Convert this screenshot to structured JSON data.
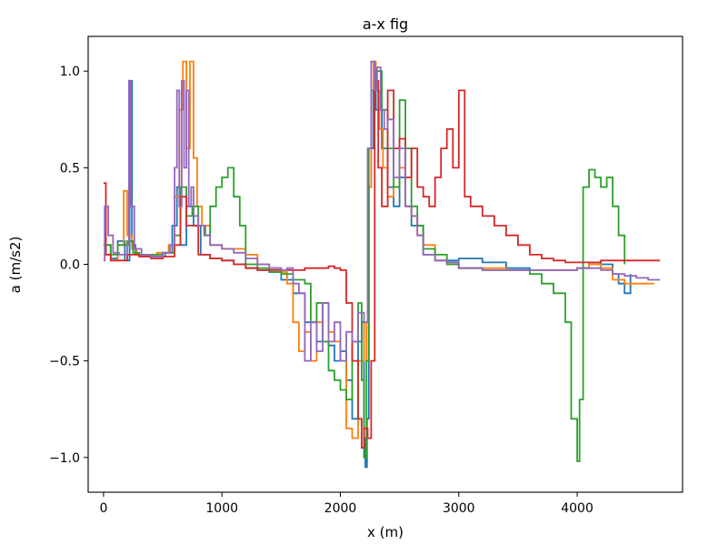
{
  "chart_data": {
    "type": "line",
    "title": "a-x fig",
    "xlabel": "x (m)",
    "ylabel": "a (m/s2)",
    "xlim": [
      -130,
      4890
    ],
    "ylim": [
      -1.18,
      1.18
    ],
    "xticks": [
      0,
      1000,
      2000,
      3000,
      4000
    ],
    "xtick_labels": [
      "0",
      "1000",
      "2000",
      "3000",
      "4000"
    ],
    "yticks": [
      -1.0,
      -0.5,
      0.0,
      0.5,
      1.0
    ],
    "ytick_labels": [
      "−1.0",
      "−0.5",
      "0.0",
      "0.5",
      "1.0"
    ],
    "grid": false,
    "step": true,
    "series": [
      {
        "color": "#1f77b4",
        "x": [
          0,
          60,
          120,
          180,
          220,
          240,
          270,
          320,
          420,
          520,
          580,
          620,
          650,
          700,
          760,
          820,
          900,
          1000,
          1100,
          1200,
          1300,
          1400,
          1500,
          1600,
          1700,
          1800,
          1900,
          1950,
          2000,
          2050,
          2100,
          2150,
          2180,
          2200,
          2210,
          2225,
          2240,
          2260,
          2280,
          2300,
          2350,
          2400,
          2450,
          2500,
          2550,
          2600,
          2700,
          2800,
          2900,
          3000,
          3200,
          3400,
          3600,
          3800,
          4000,
          4100,
          4200,
          4300,
          4350,
          4400,
          4450
        ],
        "y": [
          0.1,
          0.03,
          0.12,
          0.02,
          0.95,
          0.1,
          0.05,
          0.04,
          0.04,
          0.06,
          0.2,
          0.4,
          0.1,
          0.3,
          0.2,
          0.05,
          0.03,
          0.02,
          0.0,
          -0.02,
          -0.03,
          -0.04,
          -0.08,
          -0.15,
          -0.3,
          -0.4,
          -0.42,
          -0.5,
          -0.45,
          -0.6,
          -0.8,
          -0.4,
          -0.3,
          -0.9,
          -1.05,
          -0.8,
          0.4,
          0.6,
          0.95,
          0.8,
          0.6,
          0.4,
          0.3,
          0.45,
          0.3,
          0.2,
          0.05,
          0.02,
          0.02,
          0.03,
          0.01,
          -0.02,
          -0.03,
          -0.03,
          -0.02,
          0.01,
          0.0,
          -0.05,
          -0.1,
          -0.15,
          -0.05
        ]
      },
      {
        "color": "#ff7f0e",
        "x": [
          0,
          60,
          120,
          170,
          200,
          240,
          280,
          350,
          450,
          550,
          600,
          640,
          670,
          700,
          730,
          760,
          790,
          830,
          900,
          1000,
          1100,
          1200,
          1300,
          1400,
          1500,
          1550,
          1600,
          1650,
          1700,
          1750,
          1800,
          1850,
          1900,
          1950,
          2000,
          2050,
          2100,
          2150,
          2200,
          2220,
          2240,
          2260,
          2280,
          2300,
          2330,
          2360,
          2400,
          2450,
          2500,
          2550,
          2600,
          2650,
          2700,
          2800,
          2900,
          3000,
          3200,
          3400,
          3600,
          3800,
          4000,
          4100,
          4200,
          4300,
          4400,
          4500,
          4650
        ],
        "y": [
          0.05,
          0.02,
          0.1,
          0.38,
          0.15,
          0.08,
          0.05,
          0.05,
          0.06,
          0.1,
          0.35,
          0.8,
          1.05,
          0.6,
          1.05,
          0.55,
          0.3,
          0.2,
          0.1,
          0.08,
          0.08,
          0.05,
          0.0,
          -0.02,
          -0.04,
          -0.1,
          -0.3,
          -0.45,
          -0.35,
          -0.5,
          -0.3,
          -0.2,
          -0.35,
          -0.4,
          -0.5,
          -0.85,
          -0.9,
          -0.5,
          -0.3,
          -0.5,
          0.4,
          0.9,
          1.05,
          0.9,
          0.7,
          0.5,
          0.35,
          0.4,
          0.5,
          0.3,
          0.25,
          0.15,
          0.1,
          0.02,
          0.0,
          -0.02,
          -0.02,
          -0.03,
          -0.03,
          -0.03,
          -0.02,
          0.0,
          -0.02,
          -0.08,
          -0.1,
          -0.1,
          -0.1
        ]
      },
      {
        "color": "#2ca02c",
        "x": [
          0,
          60,
          120,
          200,
          250,
          300,
          400,
          500,
          600,
          650,
          700,
          750,
          800,
          850,
          900,
          950,
          1000,
          1050,
          1100,
          1150,
          1200,
          1300,
          1400,
          1500,
          1600,
          1700,
          1750,
          1800,
          1850,
          1900,
          1950,
          2000,
          2050,
          2100,
          2150,
          2180,
          2200,
          2220,
          2240,
          2260,
          2300,
          2350,
          2400,
          2450,
          2500,
          2550,
          2600,
          2650,
          2700,
          2800,
          2900,
          3000,
          3200,
          3400,
          3600,
          3700,
          3800,
          3900,
          3950,
          4000,
          4020,
          4050,
          4100,
          4150,
          4200,
          4250,
          4300,
          4350,
          4400
        ],
        "y": [
          0.1,
          0.05,
          0.1,
          0.12,
          0.06,
          0.05,
          0.05,
          0.06,
          0.15,
          0.4,
          0.25,
          0.3,
          0.2,
          0.15,
          0.3,
          0.4,
          0.45,
          0.5,
          0.35,
          0.2,
          0.0,
          -0.02,
          -0.04,
          -0.05,
          -0.08,
          -0.1,
          -0.3,
          -0.2,
          -0.4,
          -0.55,
          -0.6,
          -0.65,
          -0.7,
          -0.4,
          -0.2,
          -0.6,
          -1.0,
          -0.5,
          0.6,
          0.9,
          1.0,
          0.8,
          0.6,
          0.4,
          0.85,
          0.6,
          0.3,
          0.2,
          0.08,
          0.05,
          0.0,
          -0.02,
          -0.03,
          -0.03,
          -0.05,
          -0.1,
          -0.15,
          -0.3,
          -0.8,
          -1.02,
          -0.7,
          0.4,
          0.49,
          0.45,
          0.4,
          0.45,
          0.3,
          0.15,
          0.0
        ]
      },
      {
        "color": "#d62728",
        "x": [
          0,
          20,
          60,
          120,
          200,
          300,
          400,
          500,
          600,
          650,
          700,
          800,
          900,
          1000,
          1100,
          1200,
          1300,
          1400,
          1500,
          1600,
          1700,
          1800,
          1900,
          1950,
          2000,
          2050,
          2100,
          2150,
          2180,
          2200,
          2230,
          2260,
          2290,
          2320,
          2350,
          2400,
          2450,
          2500,
          2550,
          2600,
          2650,
          2700,
          2750,
          2800,
          2850,
          2900,
          2950,
          3000,
          3050,
          3100,
          3200,
          3300,
          3400,
          3500,
          3600,
          3700,
          3800,
          3900,
          4000,
          4200,
          4400,
          4600,
          4700
        ],
        "y": [
          0.42,
          0.05,
          0.02,
          0.02,
          0.05,
          0.04,
          0.03,
          0.04,
          0.1,
          0.35,
          0.2,
          0.05,
          0.03,
          0.02,
          0.0,
          -0.02,
          -0.03,
          -0.03,
          -0.03,
          -0.03,
          -0.02,
          -0.02,
          -0.01,
          -0.02,
          -0.03,
          -0.2,
          -0.5,
          -0.8,
          -0.95,
          -0.85,
          -0.9,
          -0.5,
          0.95,
          0.5,
          0.3,
          0.9,
          0.6,
          0.65,
          0.45,
          0.6,
          0.4,
          0.35,
          0.3,
          0.45,
          0.6,
          0.7,
          0.5,
          0.9,
          0.35,
          0.3,
          0.25,
          0.2,
          0.15,
          0.1,
          0.05,
          0.03,
          0.02,
          0.01,
          0.01,
          0.02,
          0.02,
          0.02,
          0.02
        ]
      },
      {
        "color": "#9467bd",
        "x": [
          0,
          10,
          40,
          80,
          130,
          200,
          215,
          230,
          260,
          320,
          400,
          500,
          560,
          600,
          620,
          640,
          660,
          680,
          700,
          720,
          740,
          760,
          800,
          860,
          900,
          1000,
          1100,
          1200,
          1300,
          1400,
          1500,
          1550,
          1600,
          1650,
          1700,
          1750,
          1800,
          1850,
          1900,
          1950,
          2000,
          2050,
          2100,
          2150,
          2200,
          2230,
          2260,
          2290,
          2310,
          2340,
          2370,
          2400,
          2450,
          2500,
          2550,
          2600,
          2650,
          2700,
          2800,
          2900,
          3000,
          3200,
          3400,
          3600,
          3800,
          4000,
          4200,
          4300,
          4400,
          4500,
          4600,
          4700
        ],
        "y": [
          0.02,
          0.3,
          0.15,
          0.06,
          0.05,
          0.1,
          0.95,
          0.3,
          0.08,
          0.05,
          0.04,
          0.06,
          0.1,
          0.5,
          0.9,
          0.3,
          0.95,
          0.5,
          0.9,
          0.3,
          0.4,
          0.25,
          0.2,
          0.15,
          0.1,
          0.08,
          0.06,
          0.03,
          0.0,
          -0.02,
          -0.03,
          -0.02,
          -0.1,
          -0.15,
          -0.5,
          -0.3,
          -0.45,
          -0.2,
          -0.4,
          -0.3,
          -0.5,
          -0.35,
          -0.4,
          -0.25,
          -0.3,
          0.6,
          1.05,
          0.9,
          1.02,
          0.8,
          0.7,
          0.75,
          0.45,
          0.6,
          0.3,
          0.25,
          0.15,
          0.05,
          0.02,
          0.01,
          -0.02,
          -0.03,
          -0.03,
          -0.03,
          -0.03,
          -0.02,
          -0.03,
          -0.05,
          -0.06,
          -0.07,
          -0.08,
          -0.08
        ]
      }
    ]
  }
}
